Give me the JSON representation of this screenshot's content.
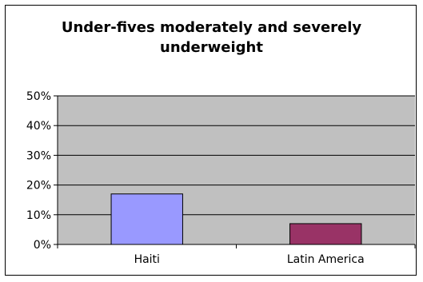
{
  "chart_data": {
    "type": "bar",
    "title_lines": [
      "Under-fives moderately and severely",
      "underweight"
    ],
    "categories": [
      "Haiti",
      "Latin America"
    ],
    "values": [
      17,
      7
    ],
    "value_unit": "%",
    "ylim": [
      0,
      50
    ],
    "yticks": [
      "0%",
      "10%",
      "20%",
      "30%",
      "40%",
      "50%"
    ],
    "grid": true,
    "legend": "none",
    "plot_background": "#c0c0c0",
    "bar_colors": [
      "#9999ff",
      "#993366"
    ]
  }
}
